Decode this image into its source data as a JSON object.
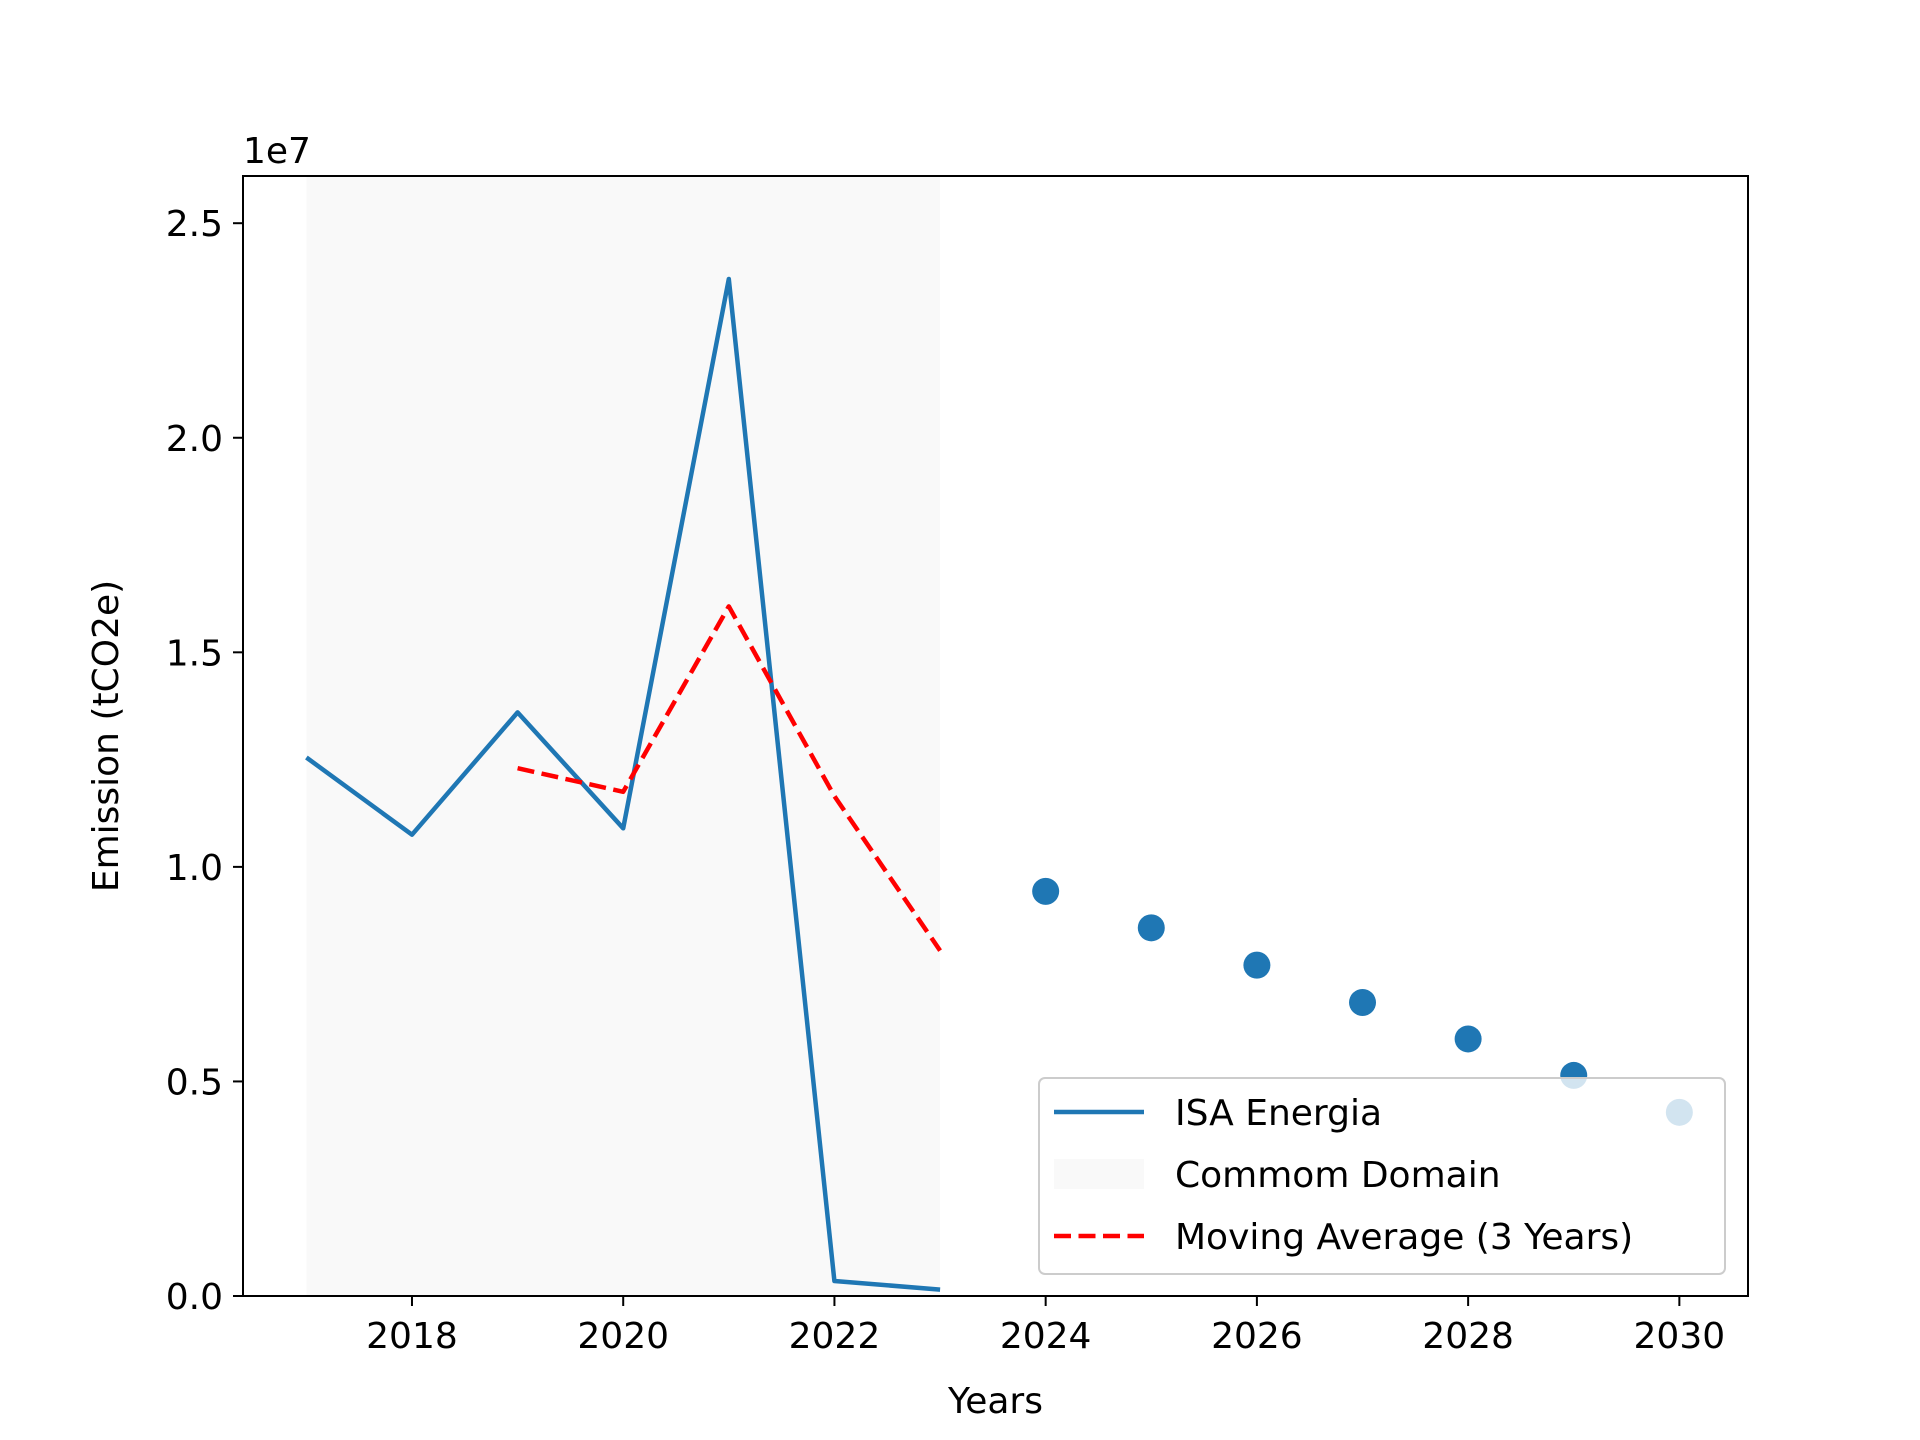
{
  "chart_data": {
    "type": "line",
    "xlabel": "Years",
    "ylabel": "Emission (tCO2e)",
    "y_offset_label": "1e7",
    "xlim": [
      2016.4,
      2030.65
    ],
    "ylim": [
      0,
      2.61
    ],
    "x_ticks": [
      2018,
      2020,
      2022,
      2024,
      2026,
      2028,
      2030
    ],
    "x_tick_labels": [
      "2018",
      "2020",
      "2022",
      "2024",
      "2026",
      "2028",
      "2030"
    ],
    "y_ticks": [
      0.0,
      0.5,
      1.0,
      1.5,
      2.0,
      2.5
    ],
    "y_tick_labels": [
      "0.0",
      "0.5",
      "1.0",
      "1.5",
      "2.0",
      "2.5"
    ],
    "y_scale_note": "values in units of 1e7 tCO2e",
    "grid": false,
    "legend_position": "lower-right",
    "common_domain": {
      "label": "Commom Domain",
      "x_range": [
        2017,
        2023
      ],
      "color": "#f9f9f9"
    },
    "series": [
      {
        "name": "ISA Energia",
        "kind": "line",
        "color": "#1f77b4",
        "x": [
          2017,
          2018,
          2019,
          2020,
          2021,
          2022,
          2023
        ],
        "y": [
          1.255,
          1.075,
          1.36,
          1.09,
          2.37,
          0.035,
          0.015
        ]
      },
      {
        "name": "Moving Average (3 Years)",
        "kind": "dashed-line",
        "color": "#ff0000",
        "x": [
          2019,
          2020,
          2021,
          2022,
          2023
        ],
        "y": [
          1.23,
          1.175,
          1.607,
          1.165,
          0.805
        ]
      },
      {
        "name": "",
        "kind": "scatter",
        "color": "#1f77b4",
        "x": [
          2024,
          2025,
          2026,
          2027,
          2028,
          2029,
          2030
        ],
        "y": [
          0.943,
          0.858,
          0.771,
          0.684,
          0.599,
          0.514,
          0.428
        ]
      }
    ],
    "legend": [
      {
        "label": "ISA Energia",
        "kind": "line",
        "color": "#1f77b4"
      },
      {
        "label": "Commom Domain",
        "kind": "patch",
        "color": "#f9f9f9"
      },
      {
        "label": "Moving Average (3 Years)",
        "kind": "dashed-line",
        "color": "#ff0000"
      }
    ]
  }
}
